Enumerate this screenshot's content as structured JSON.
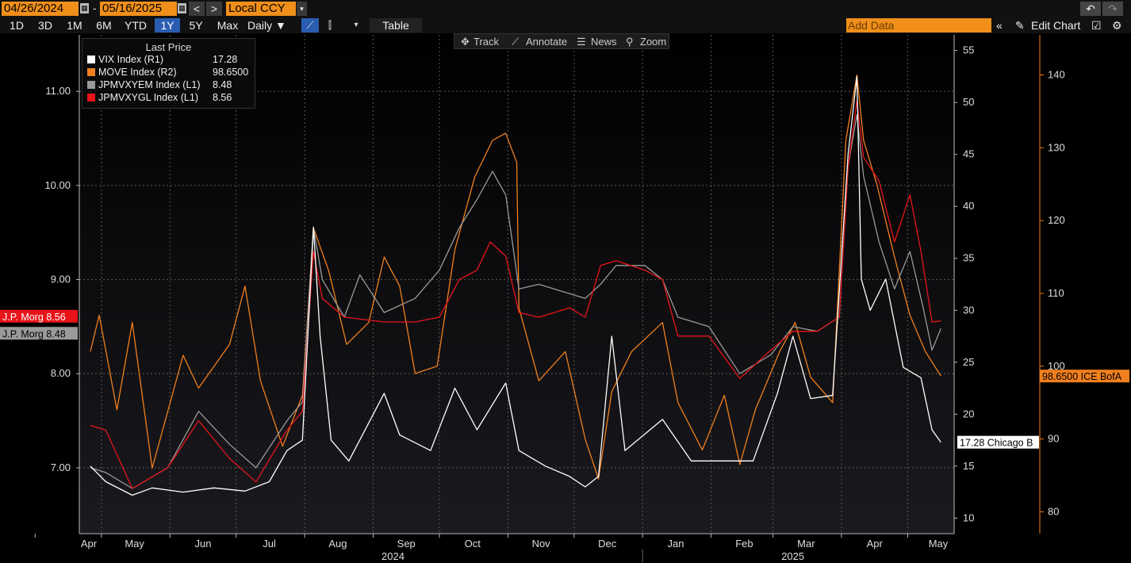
{
  "toolbar": {
    "start_date": "04/26/2024",
    "date_sep": "-",
    "end_date": "05/16/2025",
    "prev": "<",
    "next": ">",
    "currency": "Local CCY",
    "dropdown": "▾",
    "undo": "↶",
    "redo": "↷"
  },
  "periods": [
    {
      "label": "1D",
      "active": false
    },
    {
      "label": "3D",
      "active": false
    },
    {
      "label": "1M",
      "active": false
    },
    {
      "label": "6M",
      "active": false
    },
    {
      "label": "YTD",
      "active": false
    },
    {
      "label": "1Y",
      "active": true
    },
    {
      "label": "5Y",
      "active": false
    },
    {
      "label": "Max",
      "active": false
    }
  ],
  "frequency": "Daily ▼",
  "table_label": "Table",
  "add_data_placeholder": "Add Data",
  "edit_chart_label": "Edit Chart",
  "hover_tools": [
    "Track",
    "Annotate",
    "News",
    "Zoom"
  ],
  "legend": {
    "title": "Last Price",
    "items": [
      {
        "name": "VIX Index  (R1)",
        "value": "17.28",
        "color": "#ffffff"
      },
      {
        "name": "MOVE Index  (R2)",
        "value": "98.6500",
        "color": "#f07f1e"
      },
      {
        "name": "JPMVXYEM Index  (L1)",
        "value": "8.48",
        "color": "#9a9a9a"
      },
      {
        "name": "JPMVXYGL Index  (L1)",
        "value": "8.56",
        "color": "#e8141a"
      }
    ]
  },
  "tags": {
    "jpm_gl": "J.P. Morg 8.56",
    "jpm_em": "J.P. Morg 8.48",
    "move": "98.6500 ICE BofA",
    "vix": "17.28 Chicago B"
  },
  "chart_data": {
    "type": "line",
    "x_range": [
      "2024-04-26",
      "2025-05-16"
    ],
    "x_months": [
      "Apr",
      "May",
      "Jun",
      "Jul",
      "Aug",
      "Sep",
      "Oct",
      "Nov",
      "Dec",
      "Jan",
      "Feb",
      "Mar",
      "Apr",
      "May"
    ],
    "x_years": [
      "2024",
      "2025"
    ],
    "axes": {
      "L1": {
        "ticks": [
          "7.00",
          "8.00",
          "9.00",
          "10.00",
          "11.00"
        ],
        "ylim": [
          6.3,
          11.6
        ]
      },
      "R1": {
        "ticks": [
          "10",
          "15",
          "20",
          "25",
          "30",
          "35",
          "40",
          "45",
          "50",
          "55"
        ],
        "ylim": [
          8.5,
          56.5
        ]
      },
      "R2": {
        "ticks": [
          "80",
          "90",
          "100",
          "110",
          "120",
          "130",
          "140"
        ],
        "ylim": [
          77,
          145.5
        ]
      }
    },
    "grid": true,
    "legend_position": "top-left",
    "series": [
      {
        "name": "VIX Index",
        "axis": "R1",
        "color": "#ffffff",
        "points": [
          [
            "2024-04-26",
            15.0
          ],
          [
            "2024-05-03",
            13.5
          ],
          [
            "2024-05-15",
            12.2
          ],
          [
            "2024-05-24",
            12.9
          ],
          [
            "2024-06-07",
            12.5
          ],
          [
            "2024-06-21",
            12.9
          ],
          [
            "2024-07-05",
            12.6
          ],
          [
            "2024-07-16",
            13.5
          ],
          [
            "2024-07-24",
            16.5
          ],
          [
            "2024-07-31",
            17.5
          ],
          [
            "2024-08-05",
            38.0
          ],
          [
            "2024-08-08",
            27.5
          ],
          [
            "2024-08-13",
            17.5
          ],
          [
            "2024-08-21",
            15.5
          ],
          [
            "2024-09-06",
            22.0
          ],
          [
            "2024-09-13",
            18.0
          ],
          [
            "2024-09-27",
            16.5
          ],
          [
            "2024-10-08",
            22.5
          ],
          [
            "2024-10-18",
            18.5
          ],
          [
            "2024-10-31",
            23.0
          ],
          [
            "2024-11-06",
            16.5
          ],
          [
            "2024-11-18",
            15.0
          ],
          [
            "2024-11-29",
            14.0
          ],
          [
            "2024-12-06",
            13.0
          ],
          [
            "2024-12-12",
            14.0
          ],
          [
            "2024-12-18",
            27.5
          ],
          [
            "2024-12-24",
            16.5
          ],
          [
            "2025-01-10",
            19.5
          ],
          [
            "2025-01-23",
            15.5
          ],
          [
            "2025-02-07",
            15.5
          ],
          [
            "2025-02-20",
            15.5
          ],
          [
            "2025-03-03",
            22.0
          ],
          [
            "2025-03-10",
            27.5
          ],
          [
            "2025-03-18",
            21.5
          ],
          [
            "2025-03-28",
            21.8
          ],
          [
            "2025-04-04",
            45.0
          ],
          [
            "2025-04-08",
            52.5
          ],
          [
            "2025-04-10",
            33.0
          ],
          [
            "2025-04-14",
            30.0
          ],
          [
            "2025-04-21",
            33.0
          ],
          [
            "2025-04-29",
            24.5
          ],
          [
            "2025-05-07",
            23.5
          ],
          [
            "2025-05-12",
            18.5
          ],
          [
            "2025-05-16",
            17.3
          ]
        ]
      },
      {
        "name": "MOVE Index",
        "axis": "R2",
        "color": "#f07f1e",
        "points": [
          [
            "2024-04-26",
            102.0
          ],
          [
            "2024-04-30",
            107.0
          ],
          [
            "2024-05-08",
            94.0
          ],
          [
            "2024-05-15",
            106.0
          ],
          [
            "2024-05-24",
            86.0
          ],
          [
            "2024-06-07",
            101.5
          ],
          [
            "2024-06-14",
            97.0
          ],
          [
            "2024-06-28",
            103.0
          ],
          [
            "2024-07-05",
            111.0
          ],
          [
            "2024-07-12",
            98.0
          ],
          [
            "2024-07-22",
            89.0
          ],
          [
            "2024-07-31",
            96.0
          ],
          [
            "2024-08-05",
            119.0
          ],
          [
            "2024-08-12",
            113.0
          ],
          [
            "2024-08-20",
            103.0
          ],
          [
            "2024-08-30",
            106.0
          ],
          [
            "2024-09-06",
            115.0
          ],
          [
            "2024-09-13",
            111.0
          ],
          [
            "2024-09-20",
            99.0
          ],
          [
            "2024-09-30",
            100.0
          ],
          [
            "2024-10-08",
            116.0
          ],
          [
            "2024-10-17",
            126.0
          ],
          [
            "2024-10-25",
            131.0
          ],
          [
            "2024-10-31",
            132.0
          ],
          [
            "2024-11-05",
            128.0
          ],
          [
            "2024-11-06",
            108.0
          ],
          [
            "2024-11-15",
            98.0
          ],
          [
            "2024-11-27",
            102.0
          ],
          [
            "2024-12-06",
            90.0
          ],
          [
            "2024-12-12",
            84.5
          ],
          [
            "2024-12-18",
            96.5
          ],
          [
            "2024-12-27",
            102.0
          ],
          [
            "2025-01-10",
            106.0
          ],
          [
            "2025-01-17",
            95.0
          ],
          [
            "2025-01-28",
            88.5
          ],
          [
            "2025-02-07",
            96.0
          ],
          [
            "2025-02-14",
            86.5
          ],
          [
            "2025-02-21",
            94.0
          ],
          [
            "2025-03-04",
            102.0
          ],
          [
            "2025-03-11",
            106.0
          ],
          [
            "2025-03-18",
            98.5
          ],
          [
            "2025-03-28",
            95.0
          ],
          [
            "2025-04-03",
            131.0
          ],
          [
            "2025-04-08",
            140.0
          ],
          [
            "2025-04-11",
            131.0
          ],
          [
            "2025-04-17",
            125.0
          ],
          [
            "2025-04-25",
            115.0
          ],
          [
            "2025-05-02",
            107.0
          ],
          [
            "2025-05-09",
            102.0
          ],
          [
            "2025-05-16",
            98.65
          ]
        ]
      },
      {
        "name": "JPMVXYEM Index",
        "axis": "L1",
        "color": "#9a9a9a",
        "points": [
          [
            "2024-04-26",
            7.0
          ],
          [
            "2024-05-03",
            6.95
          ],
          [
            "2024-05-15",
            6.78
          ],
          [
            "2024-05-31",
            7.0
          ],
          [
            "2024-06-14",
            7.6
          ],
          [
            "2024-06-28",
            7.25
          ],
          [
            "2024-07-10",
            7.0
          ],
          [
            "2024-07-24",
            7.5
          ],
          [
            "2024-07-31",
            7.7
          ],
          [
            "2024-08-05",
            9.55
          ],
          [
            "2024-08-09",
            9.0
          ],
          [
            "2024-08-19",
            8.6
          ],
          [
            "2024-08-26",
            9.05
          ],
          [
            "2024-09-06",
            8.65
          ],
          [
            "2024-09-20",
            8.8
          ],
          [
            "2024-10-01",
            9.1
          ],
          [
            "2024-10-10",
            9.55
          ],
          [
            "2024-10-18",
            9.85
          ],
          [
            "2024-10-25",
            10.15
          ],
          [
            "2024-10-31",
            9.9
          ],
          [
            "2024-11-06",
            8.9
          ],
          [
            "2024-11-15",
            8.95
          ],
          [
            "2024-11-29",
            8.85
          ],
          [
            "2024-12-06",
            8.8
          ],
          [
            "2024-12-13",
            8.95
          ],
          [
            "2024-12-20",
            9.15
          ],
          [
            "2025-01-02",
            9.15
          ],
          [
            "2025-01-10",
            9.0
          ],
          [
            "2025-01-17",
            8.6
          ],
          [
            "2025-01-31",
            8.5
          ],
          [
            "2025-02-14",
            8.0
          ],
          [
            "2025-02-28",
            8.2
          ],
          [
            "2025-03-10",
            8.5
          ],
          [
            "2025-03-21",
            8.45
          ],
          [
            "2025-03-31",
            8.6
          ],
          [
            "2025-04-04",
            10.2
          ],
          [
            "2025-04-08",
            10.75
          ],
          [
            "2025-04-11",
            10.1
          ],
          [
            "2025-04-18",
            9.4
          ],
          [
            "2025-04-25",
            8.9
          ],
          [
            "2025-05-02",
            9.3
          ],
          [
            "2025-05-08",
            8.7
          ],
          [
            "2025-05-12",
            8.25
          ],
          [
            "2025-05-16",
            8.48
          ]
        ]
      },
      {
        "name": "JPMVXYGL Index",
        "axis": "L1",
        "color": "#e8141a",
        "points": [
          [
            "2024-04-26",
            7.45
          ],
          [
            "2024-05-03",
            7.4
          ],
          [
            "2024-05-15",
            6.78
          ],
          [
            "2024-05-31",
            7.0
          ],
          [
            "2024-06-14",
            7.5
          ],
          [
            "2024-06-28",
            7.1
          ],
          [
            "2024-07-10",
            6.85
          ],
          [
            "2024-07-24",
            7.4
          ],
          [
            "2024-07-31",
            7.6
          ],
          [
            "2024-08-05",
            9.3
          ],
          [
            "2024-08-09",
            8.8
          ],
          [
            "2024-08-19",
            8.6
          ],
          [
            "2024-09-06",
            8.55
          ],
          [
            "2024-09-20",
            8.55
          ],
          [
            "2024-10-01",
            8.6
          ],
          [
            "2024-10-10",
            9.0
          ],
          [
            "2024-10-18",
            9.1
          ],
          [
            "2024-10-24",
            9.4
          ],
          [
            "2024-10-31",
            9.25
          ],
          [
            "2024-11-06",
            8.65
          ],
          [
            "2024-11-15",
            8.6
          ],
          [
            "2024-11-29",
            8.7
          ],
          [
            "2024-12-06",
            8.6
          ],
          [
            "2024-12-13",
            9.15
          ],
          [
            "2024-12-20",
            9.2
          ],
          [
            "2025-01-02",
            9.1
          ],
          [
            "2025-01-10",
            9.0
          ],
          [
            "2025-01-17",
            8.4
          ],
          [
            "2025-01-31",
            8.4
          ],
          [
            "2025-02-14",
            7.95
          ],
          [
            "2025-02-28",
            8.25
          ],
          [
            "2025-03-10",
            8.45
          ],
          [
            "2025-03-21",
            8.45
          ],
          [
            "2025-03-31",
            8.6
          ],
          [
            "2025-04-04",
            10.2
          ],
          [
            "2025-04-08",
            10.9
          ],
          [
            "2025-04-11",
            10.3
          ],
          [
            "2025-04-18",
            10.05
          ],
          [
            "2025-04-25",
            9.4
          ],
          [
            "2025-05-02",
            9.9
          ],
          [
            "2025-05-07",
            9.3
          ],
          [
            "2025-05-12",
            8.55
          ],
          [
            "2025-05-16",
            8.56
          ]
        ]
      }
    ]
  }
}
